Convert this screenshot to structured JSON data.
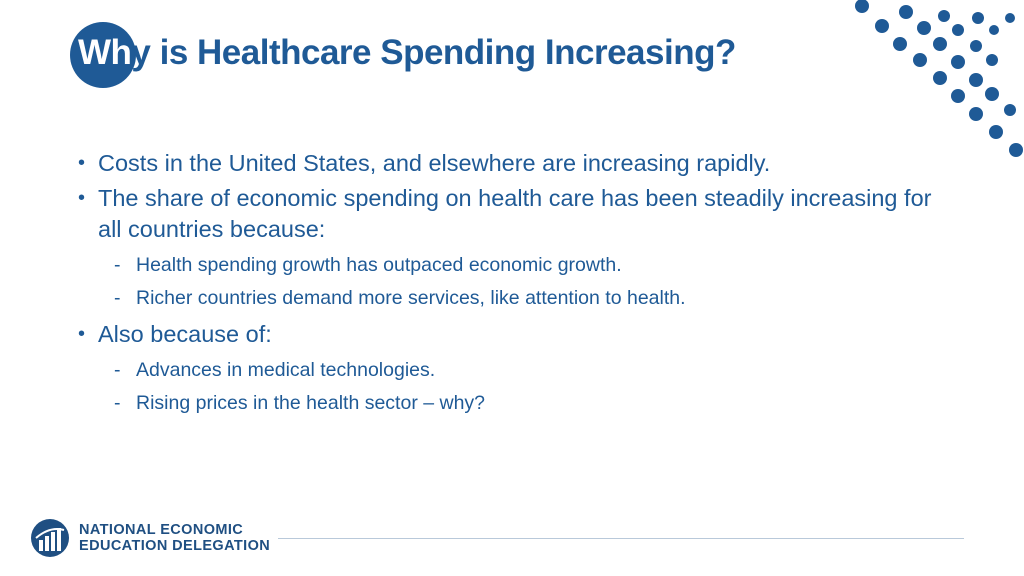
{
  "slide": {
    "title_lead": "Wh",
    "title_rest": "y is Healthcare Spending Increasing?",
    "bullets": [
      {
        "text": "Costs in the United States, and elsewhere are increasing rapidly."
      },
      {
        "text": "The share of economic spending on health care has been steadily increasing for all countries because:",
        "subs": [
          "Health spending growth has outpaced economic growth.",
          "Richer countries demand more services, like attention to health."
        ]
      },
      {
        "text": "Also because of:",
        "subs": [
          "Advances in medical technologies.",
          "Rising prices in the health sector – why?"
        ]
      }
    ]
  },
  "footer": {
    "org_line1": "NATIONAL ECONOMIC",
    "org_line2": "EDUCATION DELEGATION"
  },
  "colors": {
    "brand_blue": "#1f5a96",
    "dot_blue": "#1f5a96",
    "rule": "#b9c9da"
  },
  "icons": {
    "decor": "dot-grid-icon",
    "logo": "ned-logo-icon"
  }
}
